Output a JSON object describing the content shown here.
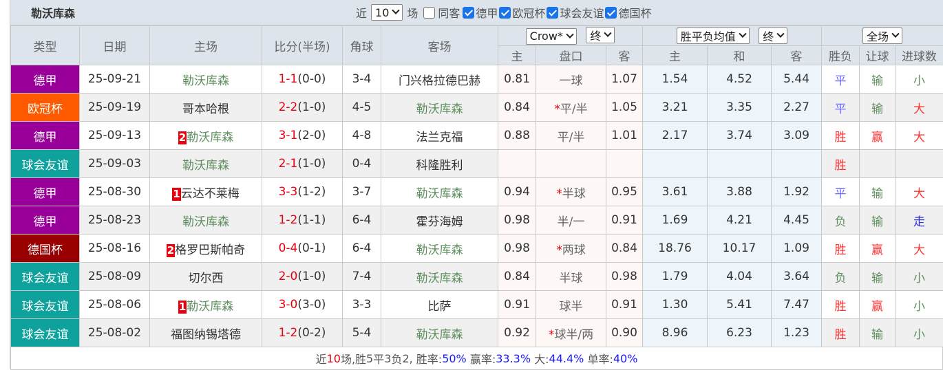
{
  "title": "勒沃库森",
  "filters": {
    "near_label": "近",
    "count": "10",
    "games_label": "场",
    "same_home_label": "同客",
    "same_home_checked": false,
    "leagues": [
      {
        "label": "德甲",
        "checked": true
      },
      {
        "label": "欧冠杯",
        "checked": true
      },
      {
        "label": "球会友谊",
        "checked": true
      },
      {
        "label": "德国杯",
        "checked": true
      }
    ]
  },
  "headers": {
    "type": "类型",
    "date": "日期",
    "home": "主场",
    "score": "比分(半场)",
    "corner": "角球",
    "away": "客场",
    "company_select": "Crow*",
    "asian_final_select": "终",
    "euro_select": "胜平负均值",
    "euro_final_select": "终",
    "period_select": "全场",
    "asian_home": "主",
    "handicap": "盘口",
    "asian_away": "客",
    "euro_home": "主",
    "euro_draw": "和",
    "euro_away": "客",
    "result": "胜负",
    "handicap_result": "让球",
    "goals_result": "进球数"
  },
  "colors": {
    "德甲": "#990099",
    "欧冠杯": "#ff5a00",
    "球会友谊": "#0fa19b",
    "德国杯": "#990000",
    "win": "#ff3333",
    "draw": "#6666ff",
    "lose": "#5f8f5f",
    "walk": "#3333dd",
    "highlight_team": "#5f8f5f"
  },
  "rows": [
    {
      "type": "德甲",
      "date": "25-09-21",
      "home": "勒沃库森",
      "home_rank": "",
      "home_hl": true,
      "score": "1-1",
      "half": "(0-0)",
      "corner": "3-4",
      "away": "门兴格拉德巴赫",
      "away_hl": false,
      "a_home": "0.81",
      "handicap": "一球",
      "star": false,
      "a_away": "1.07",
      "e_home": "1.54",
      "e_draw": "4.52",
      "e_away": "5.44",
      "res": "平",
      "hres": "输",
      "gres": "小"
    },
    {
      "type": "欧冠杯",
      "date": "25-09-19",
      "home": "哥本哈根",
      "home_rank": "",
      "home_hl": false,
      "score": "2-2",
      "half": "(1-0)",
      "corner": "4-5",
      "away": "勒沃库森",
      "away_hl": true,
      "a_home": "0.84",
      "handicap": "平/半",
      "star": true,
      "a_away": "1.05",
      "e_home": "3.21",
      "e_draw": "3.35",
      "e_away": "2.27",
      "res": "平",
      "hres": "输",
      "gres": "大"
    },
    {
      "type": "德甲",
      "date": "25-09-13",
      "home": "勒沃库森",
      "home_rank": "2",
      "home_hl": true,
      "score": "3-1",
      "half": "(2-0)",
      "corner": "4-8",
      "away": "法兰克福",
      "away_hl": false,
      "a_home": "0.88",
      "handicap": "平/半",
      "star": false,
      "a_away": "1.01",
      "e_home": "2.17",
      "e_draw": "3.74",
      "e_away": "3.09",
      "res": "胜",
      "hres": "赢",
      "gres": "大"
    },
    {
      "type": "球会友谊",
      "date": "25-09-03",
      "home": "勒沃库森",
      "home_rank": "",
      "home_hl": true,
      "score": "2-1",
      "half": "(1-0)",
      "corner": "0-4",
      "away": "科隆胜利",
      "away_hl": false,
      "a_home": "",
      "handicap": "",
      "star": false,
      "a_away": "",
      "e_home": "",
      "e_draw": "",
      "e_away": "",
      "res": "胜",
      "hres": "",
      "gres": ""
    },
    {
      "type": "德甲",
      "date": "25-08-30",
      "home": "云达不莱梅",
      "home_rank": "1",
      "home_hl": false,
      "score": "3-3",
      "half": "(1-2)",
      "corner": "3-7",
      "away": "勒沃库森",
      "away_hl": true,
      "a_home": "0.94",
      "handicap": "半球",
      "star": true,
      "a_away": "0.95",
      "e_home": "3.61",
      "e_draw": "3.88",
      "e_away": "1.92",
      "res": "平",
      "hres": "输",
      "gres": "大"
    },
    {
      "type": "德甲",
      "date": "25-08-23",
      "home": "勒沃库森",
      "home_rank": "",
      "home_hl": true,
      "score": "1-2",
      "half": "(1-1)",
      "corner": "6-4",
      "away": "霍芬海姆",
      "away_hl": false,
      "a_home": "0.98",
      "handicap": "半/一",
      "star": false,
      "a_away": "0.91",
      "e_home": "1.69",
      "e_draw": "4.21",
      "e_away": "4.45",
      "res": "负",
      "hres": "输",
      "gres": "走"
    },
    {
      "type": "德国杯",
      "date": "25-08-16",
      "home": "格罗巴斯帕奇",
      "home_rank": "2",
      "home_hl": false,
      "score": "0-4",
      "half": "(0-1)",
      "corner": "6-4",
      "away": "勒沃库森",
      "away_hl": true,
      "a_home": "0.98",
      "handicap": "两球",
      "star": true,
      "a_away": "0.84",
      "e_home": "18.76",
      "e_draw": "10.17",
      "e_away": "1.09",
      "res": "胜",
      "hres": "赢",
      "gres": "大"
    },
    {
      "type": "球会友谊",
      "date": "25-08-09",
      "home": "切尔西",
      "home_rank": "",
      "home_hl": false,
      "score": "2-0",
      "half": "(1-0)",
      "corner": "7-4",
      "away": "勒沃库森",
      "away_hl": true,
      "a_home": "0.84",
      "handicap": "半球",
      "star": false,
      "a_away": "0.98",
      "e_home": "1.79",
      "e_draw": "4.04",
      "e_away": "3.64",
      "res": "负",
      "hres": "输",
      "gres": "小"
    },
    {
      "type": "球会友谊",
      "date": "25-08-06",
      "home": "勒沃库森",
      "home_rank": "1",
      "home_hl": true,
      "score": "3-0",
      "half": "(3-0)",
      "corner": "3-3",
      "away": "比萨",
      "away_hl": false,
      "a_home": "0.91",
      "handicap": "球半",
      "star": false,
      "a_away": "0.91",
      "e_home": "1.30",
      "e_draw": "5.41",
      "e_away": "7.47",
      "res": "胜",
      "hres": "赢",
      "gres": "小"
    },
    {
      "type": "球会友谊",
      "date": "25-08-02",
      "home": "福图纳锡塔德",
      "home_rank": "",
      "home_hl": false,
      "score": "1-2",
      "half": "(0-2)",
      "corner": "5-4",
      "away": "勒沃库森",
      "away_hl": true,
      "a_home": "0.92",
      "handicap": "球半/两",
      "star": true,
      "a_away": "0.90",
      "e_home": "8.96",
      "e_draw": "6.23",
      "e_away": "1.23",
      "res": "胜",
      "hres": "输",
      "gres": "小"
    }
  ],
  "summary": {
    "near": "近",
    "count": "10",
    "games": "场,胜",
    "w": "5",
    "d_label": "平",
    "d": "3",
    "l_label": "负",
    "l": "2,",
    "win_rate_label": " 胜率:",
    "win_rate": "50%",
    "handicap_rate_label": " 赢率:",
    "handicap_rate": "33.3%",
    "big_label": " 大:",
    "big_rate": "44.4%",
    "odd_label": " 单率:",
    "odd_rate": "40%"
  }
}
